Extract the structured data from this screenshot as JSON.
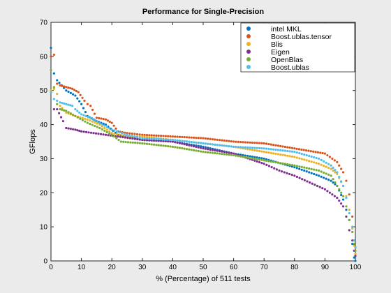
{
  "chart_data": {
    "type": "scatter",
    "title": "Performance for Single-Precision",
    "xlabel": "% (Percentage) of 511 tests",
    "ylabel": "GFlops",
    "xlim": [
      0,
      100
    ],
    "ylim": [
      0,
      70
    ],
    "xticks": [
      "0",
      "10",
      "20",
      "30",
      "40",
      "50",
      "60",
      "70",
      "80",
      "90",
      "100"
    ],
    "yticks": [
      "0",
      "10",
      "20",
      "30",
      "40",
      "50",
      "60",
      "70"
    ],
    "grid": false,
    "legend_position": "top-right",
    "series": [
      {
        "name": "intel MKL",
        "color": "#0072bd",
        "points": [
          [
            0,
            62.5
          ],
          [
            1,
            55
          ],
          [
            2,
            53
          ],
          [
            5,
            50
          ],
          [
            8,
            48.5
          ],
          [
            10,
            46
          ],
          [
            12,
            42.5
          ],
          [
            15,
            41
          ],
          [
            18,
            40
          ],
          [
            22,
            37
          ],
          [
            30,
            35.5
          ],
          [
            40,
            35
          ],
          [
            50,
            33.5
          ],
          [
            60,
            31.5
          ],
          [
            70,
            30
          ],
          [
            80,
            27.5
          ],
          [
            88,
            25
          ],
          [
            92,
            23.5
          ],
          [
            94,
            22
          ],
          [
            96,
            18
          ],
          [
            97,
            15
          ],
          [
            98,
            12
          ],
          [
            99,
            5
          ],
          [
            99.6,
            1
          ],
          [
            100,
            0
          ]
        ]
      },
      {
        "name": "Boost.ublas.tensor",
        "color": "#d95319",
        "points": [
          [
            0,
            60
          ],
          [
            1,
            60.5
          ],
          [
            2,
            52
          ],
          [
            3,
            51.5
          ],
          [
            5,
            51
          ],
          [
            7,
            50.5
          ],
          [
            9,
            49.5
          ],
          [
            11,
            47
          ],
          [
            12,
            46
          ],
          [
            13,
            45.5
          ],
          [
            15,
            42
          ],
          [
            18,
            41.5
          ],
          [
            20,
            40.5
          ],
          [
            22,
            38
          ],
          [
            25,
            37.5
          ],
          [
            30,
            37
          ],
          [
            40,
            36.5
          ],
          [
            50,
            36
          ],
          [
            60,
            35
          ],
          [
            70,
            34.5
          ],
          [
            80,
            33
          ],
          [
            90,
            31.5
          ],
          [
            94,
            29
          ],
          [
            96,
            26
          ],
          [
            97,
            23.5
          ],
          [
            98,
            19.5
          ],
          [
            99,
            13
          ],
          [
            99.6,
            6
          ],
          [
            100,
            4
          ]
        ]
      },
      {
        "name": "Blis",
        "color": "#edb120",
        "points": [
          [
            0,
            50
          ],
          [
            1,
            50.5
          ],
          [
            2,
            49
          ],
          [
            3,
            45.5
          ],
          [
            5,
            43.5
          ],
          [
            8,
            42.5
          ],
          [
            12,
            41.5
          ],
          [
            16,
            40
          ],
          [
            20,
            37.5
          ],
          [
            25,
            36.5
          ],
          [
            30,
            36.5
          ],
          [
            40,
            35.5
          ],
          [
            50,
            34.5
          ],
          [
            60,
            33.5
          ],
          [
            70,
            32
          ],
          [
            80,
            30.5
          ],
          [
            88,
            28.5
          ],
          [
            92,
            27
          ],
          [
            94,
            25.5
          ],
          [
            96,
            22
          ],
          [
            97,
            19
          ],
          [
            98,
            15
          ],
          [
            99,
            9.5
          ],
          [
            99.6,
            4.5
          ],
          [
            100,
            2
          ]
        ]
      },
      {
        "name": "Eigen",
        "color": "#7e2f8e",
        "points": [
          [
            1,
            44.5
          ],
          [
            2,
            44.5
          ],
          [
            4,
            41
          ],
          [
            5,
            39
          ],
          [
            8,
            38.5
          ],
          [
            10,
            38
          ],
          [
            14,
            37.5
          ],
          [
            18,
            37
          ],
          [
            22,
            36.5
          ],
          [
            30,
            35.5
          ],
          [
            40,
            35
          ],
          [
            50,
            33
          ],
          [
            60,
            31.5
          ],
          [
            70,
            28.5
          ],
          [
            75,
            26.5
          ],
          [
            80,
            25
          ],
          [
            85,
            23
          ],
          [
            90,
            21
          ],
          [
            94,
            18.5
          ],
          [
            96,
            16
          ],
          [
            97,
            13
          ],
          [
            98,
            9
          ],
          [
            99,
            6
          ],
          [
            99.6,
            3
          ],
          [
            100,
            1.5
          ]
        ]
      },
      {
        "name": "OpenBlas",
        "color": "#77ac30",
        "points": [
          [
            0,
            56
          ],
          [
            1,
            51
          ],
          [
            2,
            46
          ],
          [
            3,
            44.5
          ],
          [
            5,
            44
          ],
          [
            8,
            42.5
          ],
          [
            12,
            40.5
          ],
          [
            16,
            39
          ],
          [
            20,
            37
          ],
          [
            23,
            35
          ],
          [
            30,
            34.5
          ],
          [
            40,
            33.5
          ],
          [
            50,
            32
          ],
          [
            60,
            31
          ],
          [
            70,
            29.5
          ],
          [
            80,
            28
          ],
          [
            88,
            26.5
          ],
          [
            92,
            25
          ],
          [
            94,
            22
          ],
          [
            96,
            19
          ],
          [
            97,
            16
          ],
          [
            98,
            12
          ],
          [
            99,
            8.5
          ],
          [
            99.6,
            5
          ],
          [
            100,
            3
          ]
        ]
      },
      {
        "name": "Boost.ublas",
        "color": "#4dbeee",
        "points": [
          [
            0,
            49.5
          ],
          [
            1,
            47.5
          ],
          [
            2,
            47
          ],
          [
            3,
            46.5
          ],
          [
            5,
            46
          ],
          [
            7,
            45.5
          ],
          [
            8,
            44.5
          ],
          [
            10,
            43
          ],
          [
            13,
            42
          ],
          [
            16,
            40.5
          ],
          [
            20,
            38.5
          ],
          [
            25,
            37
          ],
          [
            30,
            36
          ],
          [
            40,
            35.5
          ],
          [
            50,
            34.5
          ],
          [
            60,
            33.5
          ],
          [
            70,
            33
          ],
          [
            80,
            32
          ],
          [
            88,
            30
          ],
          [
            92,
            28
          ],
          [
            94,
            26
          ],
          [
            96,
            22
          ],
          [
            97,
            18.5
          ],
          [
            98,
            14
          ],
          [
            99,
            10
          ],
          [
            99.6,
            6
          ],
          [
            100,
            4
          ]
        ]
      }
    ]
  }
}
